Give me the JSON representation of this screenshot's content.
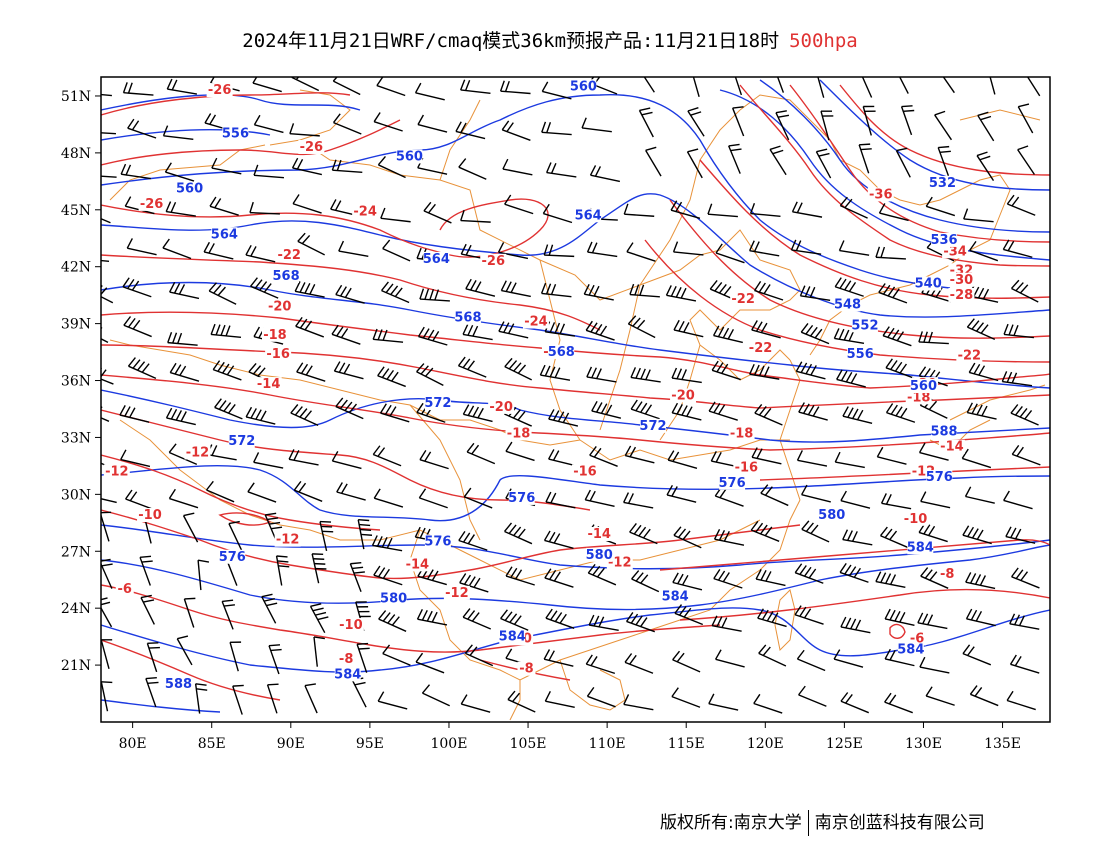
{
  "title": {
    "text": "2024年11月21日WRF/cmaq模式36km预报产品:11月21日18时",
    "level": "500hpa"
  },
  "footer": {
    "copyright": "版权所有:南京大学",
    "company": "南京创蓝科技有限公司"
  },
  "colors": {
    "temperature_contour": "#e03232",
    "height_contour": "#1c3ae0",
    "boundary": "#e8923a",
    "wind_barb": "#000000",
    "frame": "#000000"
  },
  "map": {
    "lon_range": [
      78,
      138
    ],
    "lat_range": [
      18,
      52
    ],
    "x_ticks": [
      {
        "lon": 80,
        "label": "80E"
      },
      {
        "lon": 85,
        "label": "85E"
      },
      {
        "lon": 90,
        "label": "90E"
      },
      {
        "lon": 95,
        "label": "95E"
      },
      {
        "lon": 100,
        "label": "100E"
      },
      {
        "lon": 105,
        "label": "105E"
      },
      {
        "lon": 110,
        "label": "110E"
      },
      {
        "lon": 115,
        "label": "115E"
      },
      {
        "lon": 120,
        "label": "120E"
      },
      {
        "lon": 125,
        "label": "125E"
      },
      {
        "lon": 130,
        "label": "130E"
      },
      {
        "lon": 135,
        "label": "135E"
      }
    ],
    "y_ticks": [
      {
        "lat": 21,
        "label": "21N"
      },
      {
        "lat": 24,
        "label": "24N"
      },
      {
        "lat": 27,
        "label": "27N"
      },
      {
        "lat": 30,
        "label": "30N"
      },
      {
        "lat": 33,
        "label": "33N"
      },
      {
        "lat": 36,
        "label": "36N"
      },
      {
        "lat": 39,
        "label": "39N"
      },
      {
        "lat": 42,
        "label": "42N"
      },
      {
        "lat": 45,
        "label": "45N"
      },
      {
        "lat": 48,
        "label": "48N"
      },
      {
        "lat": 51,
        "label": "51N"
      }
    ],
    "temperature_labels": [
      {
        "lon": 85.5,
        "lat": 51.1,
        "text": "-26"
      },
      {
        "lon": 91.3,
        "lat": 48.1,
        "text": "-26"
      },
      {
        "lon": 81.2,
        "lat": 45.1,
        "text": "-26"
      },
      {
        "lon": 94.7,
        "lat": 44.7,
        "text": "-24"
      },
      {
        "lon": 102.8,
        "lat": 42.1,
        "text": "-26"
      },
      {
        "lon": 89.9,
        "lat": 42.4,
        "text": "-22"
      },
      {
        "lon": 89.3,
        "lat": 39.7,
        "text": "-20"
      },
      {
        "lon": 89.0,
        "lat": 38.2,
        "text": "-18"
      },
      {
        "lon": 89.2,
        "lat": 37.2,
        "text": "-16"
      },
      {
        "lon": 88.6,
        "lat": 35.6,
        "text": "-14"
      },
      {
        "lon": 84.1,
        "lat": 32.0,
        "text": "-12"
      },
      {
        "lon": 79.0,
        "lat": 31.0,
        "text": "-12"
      },
      {
        "lon": 81.1,
        "lat": 28.7,
        "text": "-10"
      },
      {
        "lon": 89.8,
        "lat": 27.4,
        "text": "-12"
      },
      {
        "lon": 79.5,
        "lat": 24.8,
        "text": "-6"
      },
      {
        "lon": 98.0,
        "lat": 26.1,
        "text": "-14"
      },
      {
        "lon": 100.5,
        "lat": 24.6,
        "text": "-12"
      },
      {
        "lon": 93.8,
        "lat": 22.9,
        "text": "-10"
      },
      {
        "lon": 93.5,
        "lat": 21.1,
        "text": "-8"
      },
      {
        "lon": 104.5,
        "lat": 22.2,
        "text": "-10"
      },
      {
        "lon": 104.9,
        "lat": 20.6,
        "text": "-8"
      },
      {
        "lon": 105.5,
        "lat": 38.9,
        "text": "-24"
      },
      {
        "lon": 106.7,
        "lat": 37.3,
        "text": "-22"
      },
      {
        "lon": 103.3,
        "lat": 34.4,
        "text": "-20"
      },
      {
        "lon": 104.4,
        "lat": 33.0,
        "text": "-18"
      },
      {
        "lon": 108.6,
        "lat": 31.0,
        "text": "-16"
      },
      {
        "lon": 109.5,
        "lat": 27.7,
        "text": "-14"
      },
      {
        "lon": 110.8,
        "lat": 26.2,
        "text": "-12"
      },
      {
        "lon": 114.8,
        "lat": 35.0,
        "text": "-20"
      },
      {
        "lon": 118.5,
        "lat": 33.0,
        "text": "-18"
      },
      {
        "lon": 118.8,
        "lat": 31.2,
        "text": "-16"
      },
      {
        "lon": 118.6,
        "lat": 40.1,
        "text": "-22"
      },
      {
        "lon": 119.7,
        "lat": 37.5,
        "text": "-22"
      },
      {
        "lon": 127.3,
        "lat": 45.6,
        "text": "-36"
      },
      {
        "lon": 132.0,
        "lat": 42.6,
        "text": "-34"
      },
      {
        "lon": 132.4,
        "lat": 41.6,
        "text": "-32"
      },
      {
        "lon": 132.4,
        "lat": 41.1,
        "text": "-30"
      },
      {
        "lon": 132.4,
        "lat": 40.3,
        "text": "-28"
      },
      {
        "lon": 132.9,
        "lat": 37.1,
        "text": "-22"
      },
      {
        "lon": 130.1,
        "lat": 35.6,
        "text": "-20"
      },
      {
        "lon": 129.7,
        "lat": 34.9,
        "text": "-18"
      },
      {
        "lon": 131.8,
        "lat": 32.3,
        "text": "-14"
      },
      {
        "lon": 130.0,
        "lat": 31.0,
        "text": "-12"
      },
      {
        "lon": 129.5,
        "lat": 28.5,
        "text": "-10"
      },
      {
        "lon": 131.5,
        "lat": 25.6,
        "text": "-8"
      },
      {
        "lon": 129.6,
        "lat": 22.2,
        "text": "-6"
      }
    ],
    "height_labels": [
      {
        "lon": 108.5,
        "lat": 51.3,
        "text": "560"
      },
      {
        "lon": 86.5,
        "lat": 48.8,
        "text": "556"
      },
      {
        "lon": 97.5,
        "lat": 47.6,
        "text": "560"
      },
      {
        "lon": 83.6,
        "lat": 45.9,
        "text": "560"
      },
      {
        "lon": 85.8,
        "lat": 43.5,
        "text": "564"
      },
      {
        "lon": 108.8,
        "lat": 44.5,
        "text": "564"
      },
      {
        "lon": 99.2,
        "lat": 42.2,
        "text": "564"
      },
      {
        "lon": 89.7,
        "lat": 41.3,
        "text": "568"
      },
      {
        "lon": 101.2,
        "lat": 39.1,
        "text": "568"
      },
      {
        "lon": 99.3,
        "lat": 34.6,
        "text": "572"
      },
      {
        "lon": 86.9,
        "lat": 32.6,
        "text": "572"
      },
      {
        "lon": 107.1,
        "lat": 37.3,
        "text": "568"
      },
      {
        "lon": 112.9,
        "lat": 33.4,
        "text": "572"
      },
      {
        "lon": 104.6,
        "lat": 29.6,
        "text": "576"
      },
      {
        "lon": 99.3,
        "lat": 27.3,
        "text": "576"
      },
      {
        "lon": 86.3,
        "lat": 26.5,
        "text": "576"
      },
      {
        "lon": 109.5,
        "lat": 26.6,
        "text": "580"
      },
      {
        "lon": 96.5,
        "lat": 24.3,
        "text": "580"
      },
      {
        "lon": 114.3,
        "lat": 24.4,
        "text": "584"
      },
      {
        "lon": 117.9,
        "lat": 30.4,
        "text": "576"
      },
      {
        "lon": 124.2,
        "lat": 28.7,
        "text": "580"
      },
      {
        "lon": 129.8,
        "lat": 27.0,
        "text": "584"
      },
      {
        "lon": 129.2,
        "lat": 21.6,
        "text": "584"
      },
      {
        "lon": 82.9,
        "lat": 19.8,
        "text": "588"
      },
      {
        "lon": 131.3,
        "lat": 33.1,
        "text": "588"
      },
      {
        "lon": 131.0,
        "lat": 30.7,
        "text": "576"
      },
      {
        "lon": 126.0,
        "lat": 37.2,
        "text": "556"
      },
      {
        "lon": 126.3,
        "lat": 38.7,
        "text": "552"
      },
      {
        "lon": 130.0,
        "lat": 35.5,
        "text": "560"
      },
      {
        "lon": 125.2,
        "lat": 39.8,
        "text": "548"
      },
      {
        "lon": 131.2,
        "lat": 46.2,
        "text": "532"
      },
      {
        "lon": 131.3,
        "lat": 43.2,
        "text": "536"
      },
      {
        "lon": 130.3,
        "lat": 40.9,
        "text": "540"
      },
      {
        "lon": 93.6,
        "lat": 20.3,
        "text": "584"
      },
      {
        "lon": 104.0,
        "lat": 22.3,
        "text": "584"
      }
    ]
  }
}
